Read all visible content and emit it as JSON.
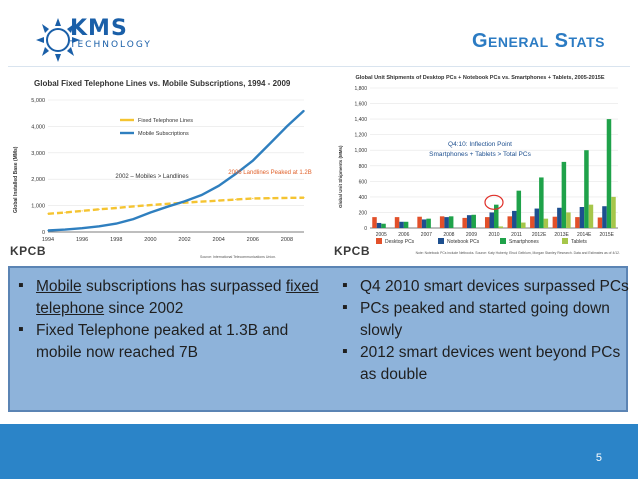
{
  "header": {
    "logo_line_1": "KMS",
    "logo_line_2": "TECHNOLOGY",
    "title": "General Stats"
  },
  "left_panel": {
    "source_label": "KPCB"
  },
  "right_panel": {
    "source_label": "KPCB"
  },
  "bullets_left": [
    {
      "pre": "",
      "underlined": "Mobile",
      "mid": " subscriptions has surpassed ",
      "underlined2": "fixed telephone",
      "post": " since 2002"
    },
    {
      "text": "Fixed Telephone peaked at 1.3B and mobile now reached 7B"
    }
  ],
  "bullets_right": [
    {
      "text": "Q4 2010 smart devices surpassed PCs"
    },
    {
      "text": "PCs peaked and started going down slowly"
    },
    {
      "text": "2012 smart devices went beyond PCs as double"
    }
  ],
  "page_number": "5",
  "colors": {
    "accent": "#2b84c8",
    "box": "#8eb3da"
  },
  "chart_data": [
    {
      "type": "line",
      "title": "Global Fixed Telephone Lines vs. Mobile Subscriptions, 1994 - 2009",
      "xlabel": "",
      "ylabel": "Global Installed Base (MMs)",
      "x": [
        1994,
        1995,
        1996,
        1997,
        1998,
        1999,
        2000,
        2001,
        2002,
        2003,
        2004,
        2005,
        2006,
        2007,
        2008,
        2009
      ],
      "x_ticks": [
        "1994",
        "1996",
        "1998",
        "2000",
        "2002",
        "2004",
        "2006",
        "2008"
      ],
      "y_ticks": [
        "0",
        "1,000",
        "2,000",
        "3,000",
        "4,000",
        "5,000"
      ],
      "ylim": [
        0,
        5000
      ],
      "series": [
        {
          "name": "Fixed Telephone Lines",
          "color": "#f5c431",
          "values": [
            690,
            740,
            800,
            860,
            910,
            970,
            1020,
            1070,
            1110,
            1150,
            1190,
            1230,
            1270,
            1280,
            1290,
            1300
          ]
        },
        {
          "name": "Mobile Subscriptions",
          "color": "#2f7fbf",
          "values": [
            56,
            90,
            145,
            215,
            320,
            490,
            740,
            960,
            1160,
            1400,
            1750,
            2200,
            2700,
            3350,
            4000,
            4600
          ]
        }
      ],
      "annotations": [
        "2002 – Mobiles > Landlines",
        "2006 Landlines Peaked at 1.2B"
      ],
      "source": "Source: International Telecommunications Union."
    },
    {
      "type": "bar",
      "title": "Global Unit Shipments of Desktop PCs + Notebook PCs vs. Smartphones + Tablets, 2005-2015E",
      "ylabel": "Global Unit Shipments (MMs)",
      "categories": [
        "2005",
        "2006",
        "2007",
        "2008",
        "2009",
        "2010",
        "2011",
        "2012E",
        "2013E",
        "2014E",
        "2015E"
      ],
      "y_ticks": [
        "0",
        "200",
        "400",
        "600",
        "800",
        "1,000",
        "1,200",
        "1,400",
        "1,600",
        "1,800"
      ],
      "ylim": [
        0,
        1800
      ],
      "series": [
        {
          "name": "Desktop PCs",
          "color": "#e2502a",
          "values": [
            140,
            140,
            145,
            150,
            130,
            140,
            150,
            150,
            145,
            140,
            135
          ]
        },
        {
          "name": "Notebook PCs",
          "color": "#1d4f8f",
          "values": [
            65,
            80,
            110,
            140,
            165,
            200,
            220,
            250,
            260,
            270,
            280
          ]
        },
        {
          "name": "Smartphones",
          "color": "#1fa24a",
          "values": [
            55,
            80,
            120,
            150,
            170,
            300,
            480,
            650,
            850,
            1000,
            1400
          ]
        },
        {
          "name": "Tablets",
          "color": "#a6c64a",
          "values": [
            0,
            0,
            0,
            0,
            0,
            20,
            70,
            120,
            200,
            300,
            400
          ]
        }
      ],
      "annotations": [
        "Q4:10: Inflection Point",
        "Smartphones + Tablets > Total PCs"
      ],
      "notes": "Note: Notebook PCs include Netbooks. Source: Katy Huberty, Ehud Gelblum, Morgan Stanley Research. Data and Estimates as of 4/12."
    }
  ]
}
